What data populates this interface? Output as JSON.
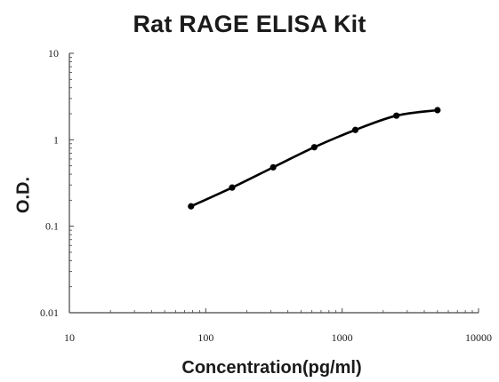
{
  "chart_data": {
    "type": "line",
    "title": "Rat RAGE ELISA Kit",
    "xlabel": "Concentration(pg/ml)",
    "ylabel": "O.D.",
    "x_scale": "log",
    "y_scale": "log",
    "xlim": [
      10,
      10000
    ],
    "ylim": [
      0.01,
      10
    ],
    "x_ticks": [
      "10",
      "100",
      "1000",
      "10000"
    ],
    "y_ticks": [
      "0.01",
      "0.1",
      "1",
      "10"
    ],
    "grid": false,
    "legend": "none",
    "series": [
      {
        "x": [
          78,
          156,
          312,
          625,
          1250,
          2500,
          5000
        ],
        "y": [
          0.17,
          0.28,
          0.48,
          0.82,
          1.3,
          1.9,
          2.2
        ]
      }
    ],
    "colors": {
      "line": "#000000",
      "marker": "#000000",
      "axis": "#444444"
    }
  }
}
